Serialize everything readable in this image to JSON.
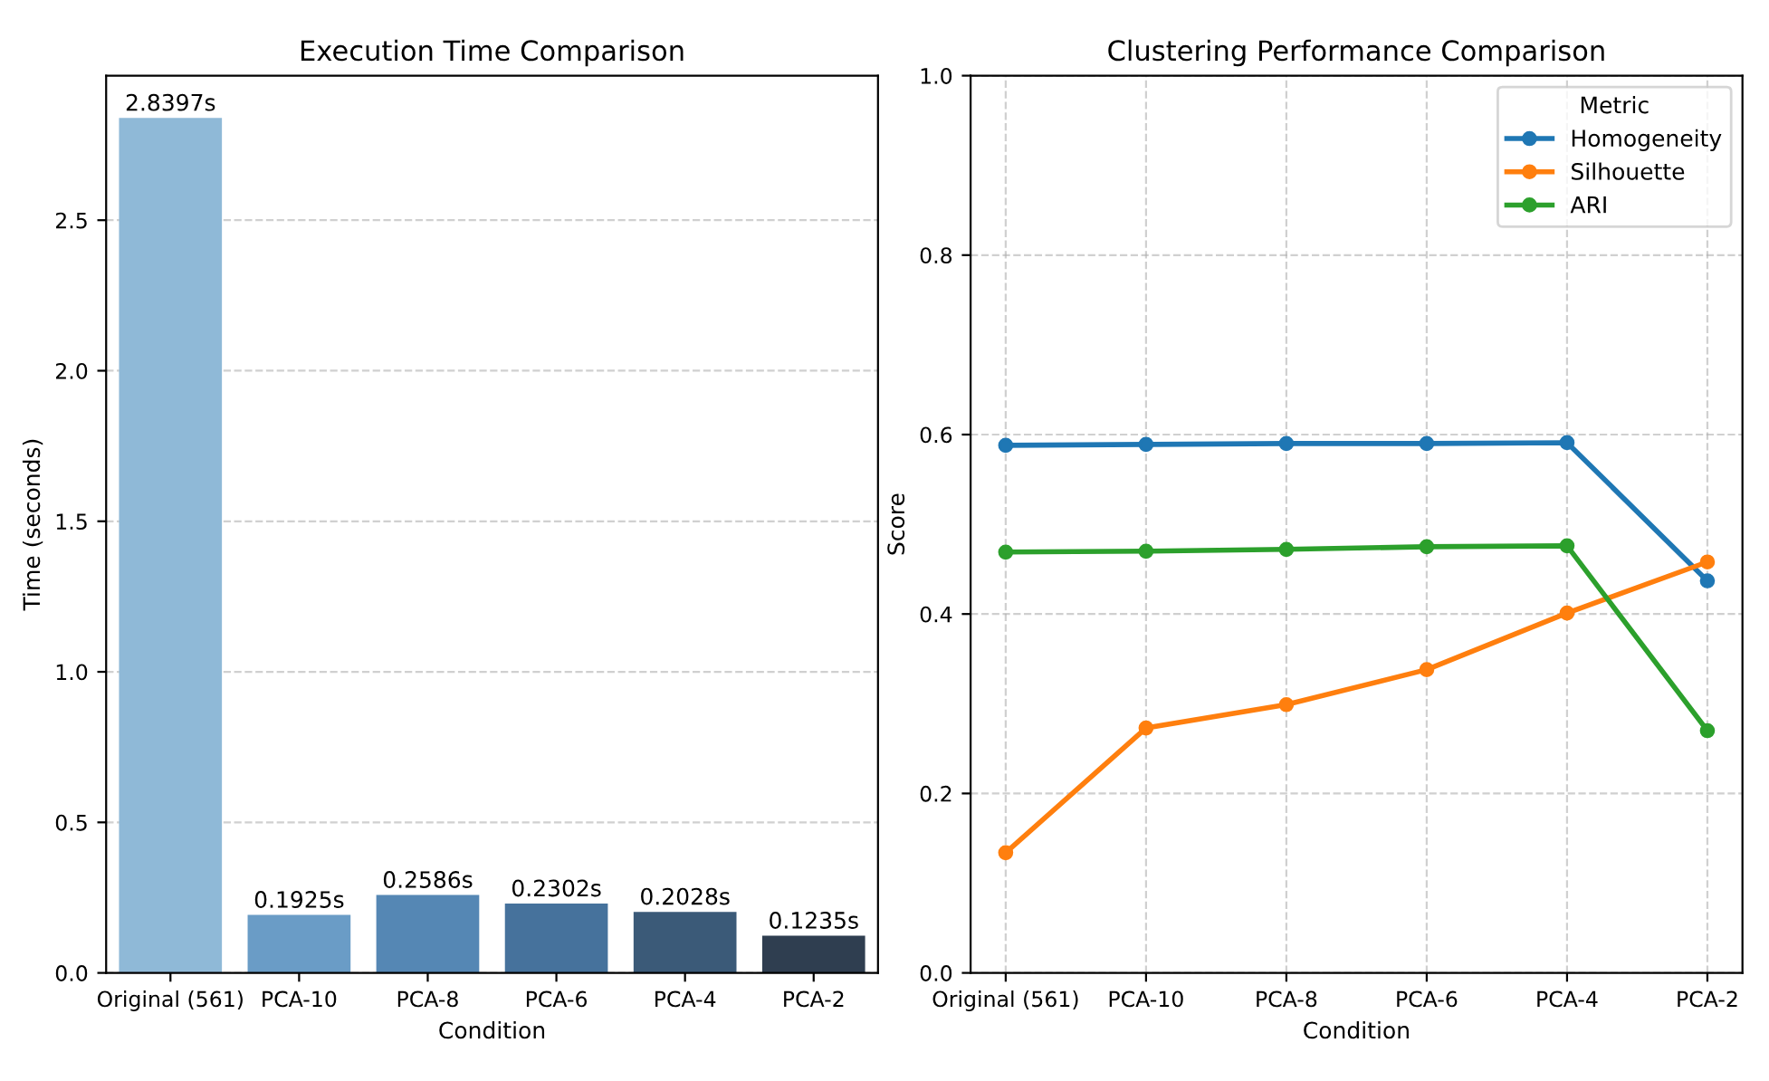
{
  "chart_data": [
    {
      "type": "bar",
      "title": "Execution Time Comparison",
      "xlabel": "Condition",
      "ylabel": "Time (seconds)",
      "categories": [
        "Original (561)",
        "PCA-10",
        "PCA-8",
        "PCA-6",
        "PCA-4",
        "PCA-2"
      ],
      "values": [
        2.8397,
        0.1925,
        0.2586,
        0.2302,
        0.2028,
        0.1235
      ],
      "colors": [
        "#8fb9d7",
        "#6a9cc6",
        "#5587b4",
        "#46729c",
        "#3b5a78",
        "#2f3e50"
      ],
      "value_labels": [
        "2.8397s",
        "0.1925s",
        "0.2586s",
        "0.2302s",
        "0.2028s",
        "0.1235s"
      ],
      "ylim": [
        0,
        2.98
      ],
      "yticks": [
        {
          "value": 0,
          "label": "0.0"
        },
        {
          "value": 0.5,
          "label": "0.5"
        },
        {
          "value": 1,
          "label": "1.0"
        },
        {
          "value": 1.5,
          "label": "1.5"
        },
        {
          "value": 2,
          "label": "2.0"
        },
        {
          "value": 2.5,
          "label": "2.5"
        }
      ],
      "grid": "y"
    },
    {
      "type": "line",
      "title": "Clustering Performance Comparison",
      "xlabel": "Condition",
      "ylabel": "Score",
      "legend_title": "Metric",
      "categories": [
        "Original (561)",
        "PCA-10",
        "PCA-8",
        "PCA-6",
        "PCA-4",
        "PCA-2"
      ],
      "series": [
        {
          "name": "Homogeneity",
          "color": "#1f77b4",
          "values": [
            0.588,
            0.589,
            0.59,
            0.59,
            0.591,
            0.437
          ]
        },
        {
          "name": "Silhouette",
          "color": "#ff7f0e",
          "values": [
            0.134,
            0.273,
            0.299,
            0.338,
            0.401,
            0.458
          ]
        },
        {
          "name": "ARI",
          "color": "#2ca02c",
          "values": [
            0.469,
            0.47,
            0.472,
            0.475,
            0.476,
            0.27
          ]
        }
      ],
      "ylim": [
        0,
        1
      ],
      "yticks": [
        {
          "value": 0,
          "label": "0.0"
        },
        {
          "value": 0.2,
          "label": "0.2"
        },
        {
          "value": 0.4,
          "label": "0.4"
        },
        {
          "value": 0.6,
          "label": "0.6"
        },
        {
          "value": 0.8,
          "label": "0.8"
        },
        {
          "value": 1,
          "label": "1.0"
        }
      ],
      "grid": true,
      "legend": "top right",
      "marker": "circle",
      "line_style": "solid"
    }
  ]
}
